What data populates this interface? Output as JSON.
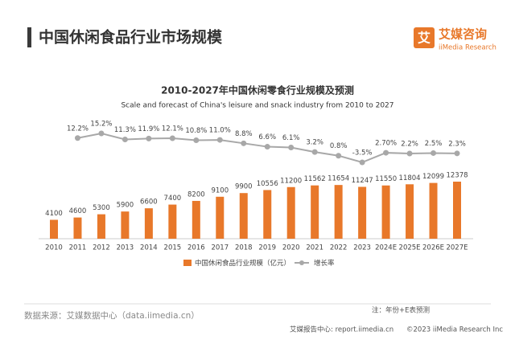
{
  "header": {
    "title": "中国休闲食品行业市场规模",
    "logo_icon": "艾",
    "logo_cn": "艾媒咨询",
    "logo_en": "iiMedia Research"
  },
  "chart_data": {
    "type": "bar",
    "title": "2010-2027年中国休闲零食行业规模及预测",
    "subtitle": "Scale and forecast of China's leisure and snack industry from 2010 to 2027",
    "categories": [
      "2010",
      "2011",
      "2012",
      "2013",
      "2014",
      "2015",
      "2016",
      "2017",
      "2018",
      "2019",
      "2020",
      "2021",
      "2022",
      "2023",
      "2024E",
      "2025E",
      "2026E",
      "2027E"
    ],
    "series": [
      {
        "name": "中国休闲食品行业规模（亿元）",
        "type": "bar",
        "color": "#e8782a",
        "values": [
          4100,
          4600,
          5300,
          5900,
          6600,
          7400,
          8200,
          9100,
          9900,
          10556,
          11200,
          11562,
          11654,
          11247,
          11550,
          11804,
          12099,
          12378
        ]
      },
      {
        "name": "增长率",
        "type": "line",
        "color": "#a8a8a8",
        "values": [
          null,
          12.2,
          15.2,
          11.3,
          11.9,
          12.1,
          10.8,
          11.0,
          8.8,
          6.6,
          6.1,
          3.2,
          0.8,
          -3.5,
          2.7,
          2.2,
          2.5,
          2.3
        ],
        "value_labels": [
          null,
          "12.2%",
          "15.2%",
          "11.3%",
          "11.9%",
          "12.1%",
          "10.8%",
          "11.0%",
          "8.8%",
          "6.6%",
          "6.1%",
          "3.2%",
          "0.8%",
          "-3.5%",
          "2.70%",
          "2.2%",
          "2.5%",
          "2.3%"
        ]
      }
    ]
  },
  "footer": {
    "source": "数据来源：艾媒数据中心（data.iimedia.cn）",
    "note": "注：年份+E表预测",
    "report": "艾媒报告中心: report.iimedia.cn",
    "copyright": "©2023 iiMedia Research Inc"
  }
}
